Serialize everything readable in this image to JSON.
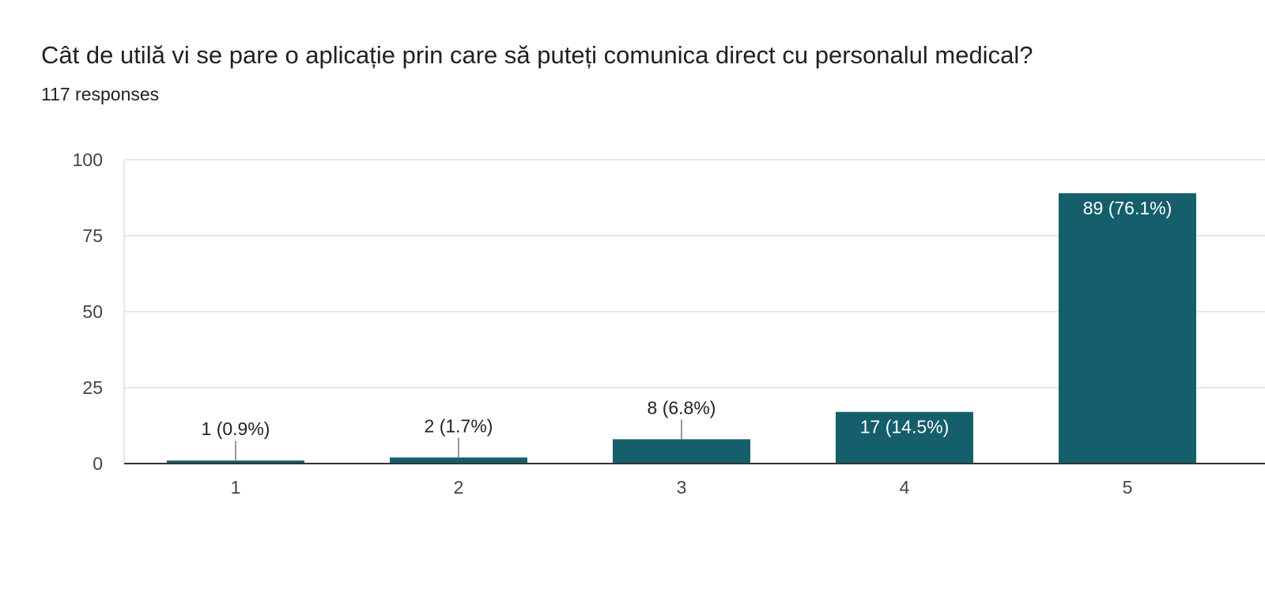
{
  "header": {
    "title": "Cât de utilă vi se pare o aplicație prin care să puteți comunica direct cu personalul medical?",
    "responses": "117 responses"
  },
  "colors": {
    "bar": "#155e6b",
    "grid": "#e6e6e6",
    "axis": "#333333",
    "leader": "#999999",
    "label_outside": "#222222",
    "label_inside": "#ffffff"
  },
  "chart_data": {
    "type": "bar",
    "title": "Cât de utilă vi se pare o aplicație prin care să puteți comunica direct cu personalul medical?",
    "subtitle": "117 responses",
    "categories": [
      "1",
      "2",
      "3",
      "4",
      "5"
    ],
    "values": [
      1,
      2,
      8,
      17,
      89
    ],
    "data_labels": [
      "1 (0.9%)",
      "2 (1.7%)",
      "8 (6.8%)",
      "17 (14.5%)",
      "89 (76.1%)"
    ],
    "ylim": [
      0,
      100
    ],
    "yticks": [
      0,
      25,
      50,
      75,
      100
    ],
    "grid": true,
    "legend": "none",
    "xlabel": "",
    "ylabel": ""
  }
}
